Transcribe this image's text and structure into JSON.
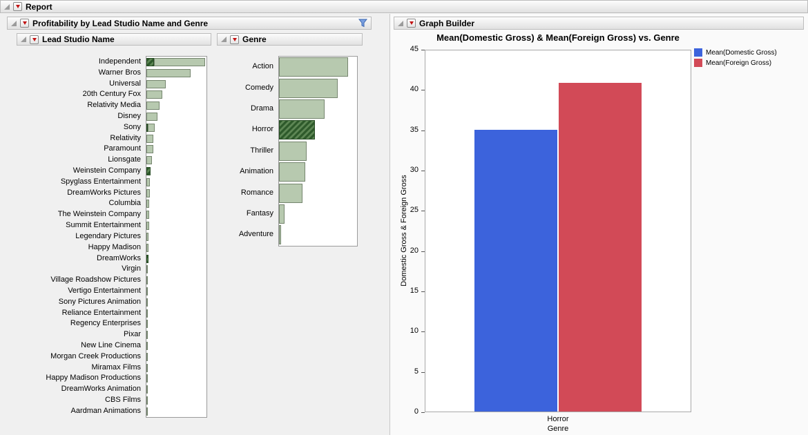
{
  "report": {
    "title": "Report"
  },
  "left_panel": {
    "title": "Profitability by Lead Studio Name and Genre",
    "studio": {
      "title": "Lead Studio Name"
    },
    "genre": {
      "title": "Genre"
    }
  },
  "graph_builder": {
    "title": "Graph Builder",
    "chart_title": "Mean(Domestic Gross) & Mean(Foreign Gross) vs. Genre",
    "ylabel": "Domestic Gross & Foreign Gross",
    "xlabel": "Genre",
    "category": "Horror"
  },
  "colors": {
    "dist_bar_fill": "#b7c9af",
    "dist_bar_border": "#75856e",
    "dist_bar_selected": "#2e5a2b",
    "series_blue": "#3c63dc",
    "series_red": "#d24a57",
    "red_triangle": "#c11212",
    "filter_funnel": "#7aa0e0"
  },
  "chart_data": [
    {
      "id": "lead_studio_distribution",
      "type": "bar",
      "orientation": "horizontal",
      "title": "Lead Studio Name",
      "note": "distribution bar lengths are relative (no axis labels shown); selected values are the dark hatched portions",
      "categories": [
        "Independent",
        "Warner Bros",
        "Universal",
        "20th Century Fox",
        "Relativity Media",
        "Disney",
        "Sony",
        "Relativity",
        "Paramount",
        "Lionsgate",
        "Weinstein Company",
        "Spyglass Entertainment",
        "DreamWorks Pictures",
        "Columbia",
        "The Weinstein Company",
        "Summit Entertainment",
        "Legendary Pictures",
        "Happy Madison",
        "DreamWorks",
        "Virgin",
        "Village Roadshow Pictures",
        "Vertigo Entertainment",
        "Sony Pictures Animation",
        "Reliance Entertainment",
        "Regency Enterprises",
        "Pixar",
        "New Line Cinema",
        "Morgan Creek Productions",
        "Miramax Films",
        "Happy Madison Productions",
        "DreamWorks Animation",
        "CBS Films",
        "Aardman Animations"
      ],
      "values": [
        80,
        60,
        26,
        22,
        18,
        15,
        11,
        9,
        9,
        8,
        6,
        5,
        5,
        4,
        4,
        4,
        3,
        3,
        3,
        2,
        2,
        2,
        2,
        2,
        2,
        2,
        2,
        1,
        1,
        1,
        1,
        1,
        1
      ],
      "selected_values": [
        10,
        0,
        0,
        0,
        0,
        0,
        2,
        0,
        0,
        0,
        6,
        0,
        0,
        0,
        0,
        0,
        0,
        0,
        3,
        0,
        0,
        0,
        0,
        0,
        0,
        0,
        0,
        0,
        0,
        0,
        0,
        0,
        0
      ]
    },
    {
      "id": "genre_distribution",
      "type": "bar",
      "orientation": "horizontal",
      "title": "Genre",
      "note": "distribution bar lengths are relative (no axis labels shown); Horror is fully selected (hatched)",
      "categories": [
        "Action",
        "Comedy",
        "Drama",
        "Horror",
        "Thriller",
        "Animation",
        "Romance",
        "Fantasy",
        "Adventure"
      ],
      "values": [
        100,
        85,
        66,
        52,
        40,
        38,
        34,
        8,
        3
      ],
      "selected_values": [
        0,
        0,
        0,
        52,
        0,
        0,
        0,
        0,
        0
      ]
    },
    {
      "id": "graph_builder_bar",
      "type": "bar",
      "title": "Mean(Domestic Gross) & Mean(Foreign Gross) vs. Genre",
      "categories": [
        "Horror"
      ],
      "series": [
        {
          "name": "Mean(Domestic Gross)",
          "values": [
            35
          ],
          "color": "#3c63dc"
        },
        {
          "name": "Mean(Foreign Gross)",
          "values": [
            40.8
          ],
          "color": "#d24a57"
        }
      ],
      "xlabel": "Genre",
      "ylabel": "Domestic Gross & Foreign Gross",
      "ylim": [
        0,
        45
      ],
      "y_ticks": [
        0,
        5,
        10,
        15,
        20,
        25,
        30,
        35,
        40,
        45
      ],
      "legend_position": "top-right",
      "grid": false
    }
  ]
}
